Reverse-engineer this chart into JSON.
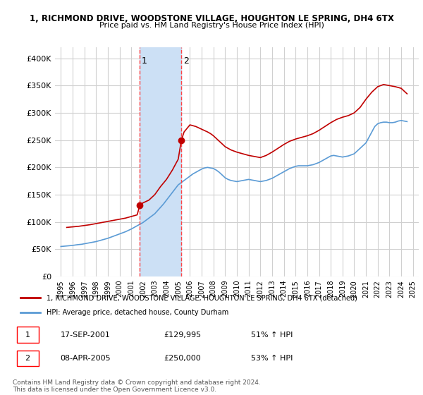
{
  "title": "1, RICHMOND DRIVE, WOODSTONE VILLAGE, HOUGHTON LE SPRING, DH4 6TX",
  "subtitle": "Price paid vs. HM Land Registry's House Price Index (HPI)",
  "legend_line1": "1, RICHMOND DRIVE, WOODSTONE VILLAGE, HOUGHTON LE SPRING, DH4 6TX (detached)",
  "legend_line2": "HPI: Average price, detached house, County Durham",
  "footer": "Contains HM Land Registry data © Crown copyright and database right 2024.\nThis data is licensed under the Open Government Licence v3.0.",
  "transaction1_label": "1",
  "transaction1_date": "17-SEP-2001",
  "transaction1_price": "£129,995",
  "transaction1_hpi": "51% ↑ HPI",
  "transaction2_label": "2",
  "transaction2_date": "08-APR-2005",
  "transaction2_price": "£250,000",
  "transaction2_hpi": "53% ↑ HPI",
  "sale1_x": 2001.72,
  "sale1_y": 129995,
  "sale2_x": 2005.27,
  "sale2_y": 250000,
  "vline1_x": 2001.72,
  "vline2_x": 2005.27,
  "shade_x1": 2001.72,
  "shade_x2": 2005.27,
  "hpi_color": "#5b9bd5",
  "sale_color": "#c00000",
  "shade_color": "#cce0f5",
  "vline_color": "#ff4444",
  "bg_color": "#ffffff",
  "grid_color": "#d0d0d0",
  "ylim": [
    0,
    420000
  ],
  "xlim": [
    1994.5,
    2025.5
  ],
  "yticks": [
    0,
    50000,
    100000,
    150000,
    200000,
    250000,
    300000,
    350000,
    400000
  ],
  "ytick_labels": [
    "£0",
    "£50K",
    "£100K",
    "£150K",
    "£200K",
    "£250K",
    "£300K",
    "£350K",
    "£400K"
  ],
  "xtick_years": [
    1995,
    1996,
    1997,
    1998,
    1999,
    2000,
    2001,
    2002,
    2003,
    2004,
    2005,
    2006,
    2007,
    2008,
    2009,
    2010,
    2011,
    2012,
    2013,
    2014,
    2015,
    2016,
    2017,
    2018,
    2019,
    2020,
    2021,
    2022,
    2023,
    2024,
    2025
  ],
  "hpi_years": [
    1995,
    1995.25,
    1995.5,
    1995.75,
    1996,
    1996.25,
    1996.5,
    1996.75,
    1997,
    1997.25,
    1997.5,
    1997.75,
    1998,
    1998.25,
    1998.5,
    1998.75,
    1999,
    1999.25,
    1999.5,
    1999.75,
    2000,
    2000.25,
    2000.5,
    2000.75,
    2001,
    2001.25,
    2001.5,
    2001.75,
    2002,
    2002.25,
    2002.5,
    2002.75,
    2003,
    2003.25,
    2003.5,
    2003.75,
    2004,
    2004.25,
    2004.5,
    2004.75,
    2005,
    2005.25,
    2005.5,
    2005.75,
    2006,
    2006.25,
    2006.5,
    2006.75,
    2007,
    2007.25,
    2007.5,
    2007.75,
    2008,
    2008.25,
    2008.5,
    2008.75,
    2009,
    2009.25,
    2009.5,
    2009.75,
    2010,
    2010.25,
    2010.5,
    2010.75,
    2011,
    2011.25,
    2011.5,
    2011.75,
    2012,
    2012.25,
    2012.5,
    2012.75,
    2013,
    2013.25,
    2013.5,
    2013.75,
    2014,
    2014.25,
    2014.5,
    2014.75,
    2015,
    2015.25,
    2015.5,
    2015.75,
    2016,
    2016.25,
    2016.5,
    2016.75,
    2017,
    2017.25,
    2017.5,
    2017.75,
    2018,
    2018.25,
    2018.5,
    2018.75,
    2019,
    2019.25,
    2019.5,
    2019.75,
    2020,
    2020.25,
    2020.5,
    2020.75,
    2021,
    2021.25,
    2021.5,
    2021.75,
    2022,
    2022.25,
    2022.5,
    2022.75,
    2023,
    2023.25,
    2023.5,
    2023.75,
    2024,
    2024.25,
    2024.5
  ],
  "hpi_values": [
    55000,
    55500,
    56000,
    56500,
    57000,
    57800,
    58500,
    59000,
    60000,
    61000,
    62000,
    63000,
    64000,
    65500,
    67000,
    68500,
    70000,
    72000,
    74000,
    76000,
    78000,
    80000,
    82000,
    84500,
    87000,
    90000,
    93000,
    96000,
    99000,
    103000,
    107000,
    111000,
    115000,
    121000,
    127000,
    133000,
    140000,
    147000,
    154000,
    161000,
    168000,
    172000,
    176000,
    180000,
    184000,
    188000,
    191000,
    194000,
    197000,
    199000,
    200000,
    199000,
    198000,
    195000,
    191000,
    186000,
    181000,
    178000,
    176000,
    175000,
    174000,
    175000,
    176000,
    177000,
    178000,
    177000,
    176000,
    175000,
    174000,
    175000,
    176000,
    178000,
    180000,
    183000,
    186000,
    189000,
    192000,
    195000,
    198000,
    200000,
    202000,
    203000,
    203000,
    203000,
    203000,
    204000,
    205000,
    207000,
    209000,
    212000,
    215000,
    218000,
    221000,
    222000,
    221000,
    220000,
    219000,
    220000,
    221000,
    223000,
    225000,
    230000,
    235000,
    240000,
    245000,
    255000,
    265000,
    275000,
    280000,
    282000,
    283000,
    283000,
    282000,
    282000,
    283000,
    285000,
    286000,
    285000,
    284000
  ],
  "sale_years": [
    1995.5,
    1996.0,
    1996.5,
    1997.0,
    1997.5,
    1998.0,
    1998.5,
    1999.0,
    1999.5,
    2000.0,
    2000.5,
    2001.0,
    2001.5,
    2001.72,
    2002.0,
    2002.5,
    2003.0,
    2003.5,
    2004.0,
    2004.5,
    2005.0,
    2005.27,
    2005.5,
    2006.0,
    2006.5,
    2007.0,
    2007.5,
    2007.75,
    2008.0,
    2008.5,
    2009.0,
    2009.5,
    2010.0,
    2010.5,
    2011.0,
    2011.5,
    2012.0,
    2012.5,
    2013.0,
    2013.5,
    2014.0,
    2014.5,
    2015.0,
    2015.5,
    2016.0,
    2016.5,
    2017.0,
    2017.5,
    2018.0,
    2018.5,
    2019.0,
    2019.5,
    2020.0,
    2020.5,
    2021.0,
    2021.5,
    2022.0,
    2022.5,
    2023.0,
    2023.5,
    2024.0,
    2024.5
  ],
  "sale_values": [
    90000,
    91000,
    92000,
    93500,
    95000,
    97000,
    99000,
    101000,
    103000,
    105000,
    107000,
    110000,
    113000,
    129995,
    135000,
    140000,
    150000,
    165000,
    178000,
    195000,
    215000,
    250000,
    265000,
    278000,
    275000,
    270000,
    265000,
    262000,
    258000,
    248000,
    238000,
    232000,
    228000,
    225000,
    222000,
    220000,
    218000,
    222000,
    228000,
    235000,
    242000,
    248000,
    252000,
    255000,
    258000,
    262000,
    268000,
    275000,
    282000,
    288000,
    292000,
    295000,
    300000,
    310000,
    325000,
    338000,
    348000,
    352000,
    350000,
    348000,
    345000,
    335000
  ]
}
